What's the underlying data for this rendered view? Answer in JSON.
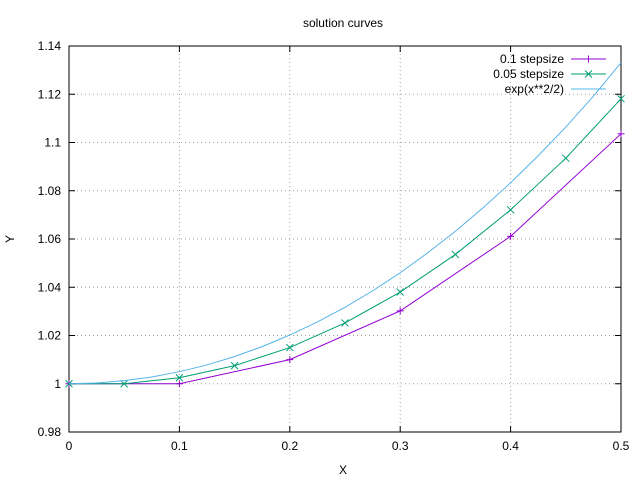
{
  "chart_data": {
    "type": "line",
    "title": "solution curves",
    "xlabel": "X",
    "ylabel": "Y",
    "xlim": [
      0,
      0.5
    ],
    "ylim": [
      0.98,
      1.14
    ],
    "x_ticks": [
      0,
      0.1,
      0.2,
      0.3,
      0.4,
      0.5
    ],
    "x_tick_labels": [
      "0",
      "0.1",
      "0.2",
      "0.3",
      "0.4",
      "0.5"
    ],
    "y_ticks": [
      0.98,
      1.0,
      1.02,
      1.04,
      1.06,
      1.08,
      1.1,
      1.12,
      1.14
    ],
    "y_tick_labels": [
      "0.98",
      "1",
      "1.02",
      "1.04",
      "1.06",
      "1.08",
      "1.1",
      "1.12",
      "1.14"
    ],
    "grid": true,
    "legend_position": "top-right",
    "series": [
      {
        "name": "0.1 stepsize",
        "color": "#9400d3",
        "marker": "plus",
        "x": [
          0,
          0.1,
          0.2,
          0.3,
          0.4,
          0.5
        ],
        "y": [
          1.0,
          1.0,
          1.01,
          1.0302,
          1.0611,
          1.1036
        ]
      },
      {
        "name": "0.05 stepsize",
        "color": "#009e73",
        "marker": "cross",
        "x": [
          0,
          0.05,
          0.1,
          0.15,
          0.2,
          0.25,
          0.3,
          0.35,
          0.4,
          0.45,
          0.5
        ],
        "y": [
          1.0,
          1.0,
          1.0025,
          1.0075,
          1.015,
          1.0252,
          1.038,
          1.0536,
          1.0721,
          1.0935,
          1.1181
        ]
      },
      {
        "name": "exp(x**2/2)",
        "color": "#56b4e9",
        "marker": "none",
        "x": [
          0,
          0.025,
          0.05,
          0.075,
          0.1,
          0.125,
          0.15,
          0.175,
          0.2,
          0.225,
          0.25,
          0.275,
          0.3,
          0.325,
          0.35,
          0.375,
          0.4,
          0.425,
          0.45,
          0.475,
          0.5
        ],
        "y": [
          1.0,
          1.0003,
          1.0013,
          1.0028,
          1.005,
          1.0078,
          1.0113,
          1.0154,
          1.0202,
          1.0256,
          1.0317,
          1.0385,
          1.046,
          1.0543,
          1.0632,
          1.0729,
          1.0833,
          1.0945,
          1.1064,
          1.1192,
          1.1331
        ]
      }
    ]
  }
}
